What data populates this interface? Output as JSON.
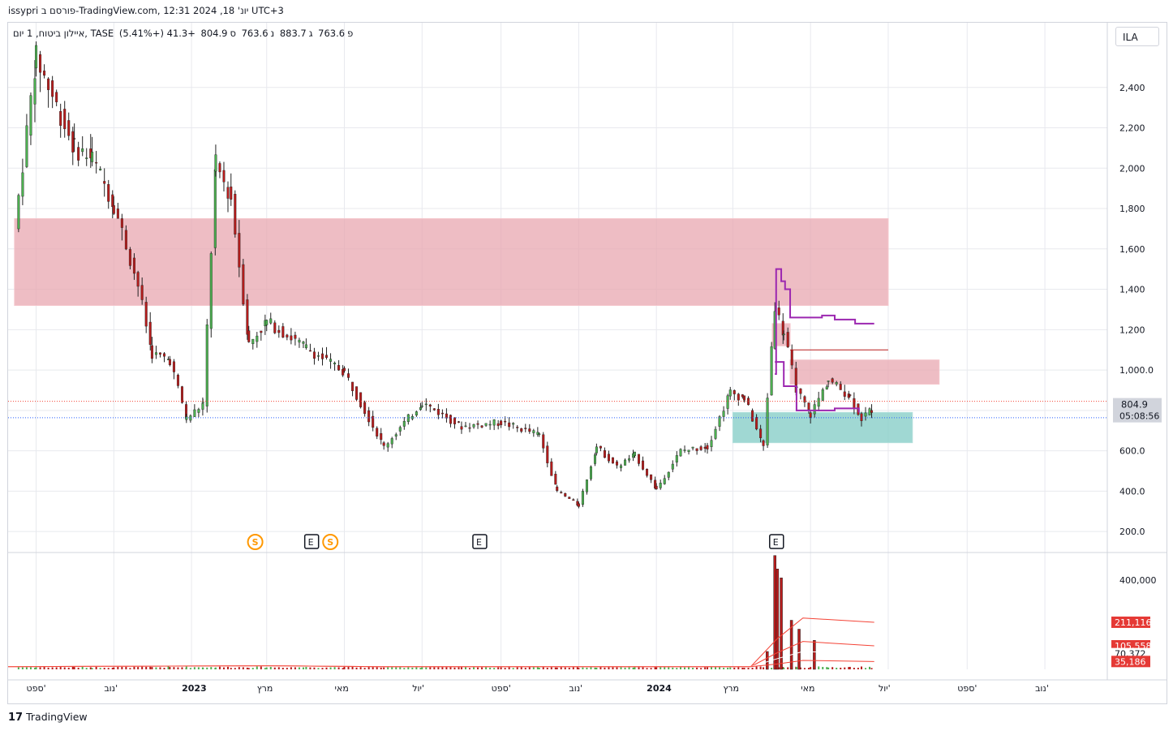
{
  "header": {
    "title": "issypri פורסם ב-TradingView.com, יונ' 18, 2024 12:31 UTC+3"
  },
  "symbol": {
    "name": "איילון ביטוח, 1 יום, TASE",
    "o_label": "פ",
    "o_value": "763.6",
    "h_label": "ג",
    "h_value": "883.7",
    "l_label": "נ",
    "l_value": "763.6",
    "c_label": "ס",
    "c_value": "804.9",
    "change": "+41.3 (+5.41%)"
  },
  "ticker_button": "ILA",
  "footer": {
    "brand": "TradingView"
  },
  "colors": {
    "up": "#4caf50",
    "down": "#b71c1c",
    "resistance_zone": "#e8a7b0",
    "support_zone": "#80cbc4",
    "indicator_line": "#9c27b0",
    "volume_ma": "#f44336",
    "price_line": "#2962ff",
    "last_price_dash": "#f44336"
  },
  "chart_data": {
    "type": "candlestick",
    "grid": true,
    "price_axis": {
      "ylim": [
        100,
        2600
      ],
      "ticks": [
        {
          "value": 200,
          "label": "200.0"
        },
        {
          "value": 400,
          "label": "400.0"
        },
        {
          "value": 600,
          "label": "600.0"
        },
        {
          "value": 800,
          "label": "800.0"
        },
        {
          "value": 1000,
          "label": "1,000.0"
        },
        {
          "value": 1200,
          "label": "1,200"
        },
        {
          "value": 1400,
          "label": "1,400"
        },
        {
          "value": 1600,
          "label": "1,600"
        },
        {
          "value": 1800,
          "label": "1,800"
        },
        {
          "value": 2000,
          "label": "2,000"
        },
        {
          "value": 2200,
          "label": "2,200"
        },
        {
          "value": 2400,
          "label": "2,400"
        }
      ],
      "last_price": {
        "value": 804.9,
        "label": "804.9",
        "countdown": "05:08:56"
      },
      "prev_close_line": 763.6
    },
    "volume_axis": {
      "ylim": [
        0,
        520000
      ],
      "ticks": [
        {
          "value": 400000,
          "label": "400,000"
        }
      ],
      "badges": [
        {
          "value": 211116,
          "label": "211,116",
          "color": "#e53935"
        },
        {
          "value": 105558,
          "label": "105,558",
          "color": "#e53935"
        },
        {
          "value": 70372,
          "label": "70,372",
          "color": "#ffffff"
        },
        {
          "value": 35186,
          "label": "35,186",
          "color": "#e53935"
        }
      ]
    },
    "time_axis": {
      "labels": [
        "ספט'",
        "נוב'",
        "2023",
        "מרץ",
        "מאי",
        "יול'",
        "ספט'",
        "נוב'",
        "2024",
        "מרץ",
        "מאי",
        "יול'",
        "ספט'",
        "נוב'"
      ],
      "bold": [
        false,
        false,
        true,
        false,
        false,
        false,
        false,
        false,
        true,
        false,
        false,
        false,
        false,
        false
      ],
      "dates": [
        "2022-09-01",
        "2022-11-01",
        "2023-01-01",
        "2023-03-01",
        "2023-05-01",
        "2023-07-01",
        "2023-09-01",
        "2023-11-01",
        "2024-01-01",
        "2024-03-01",
        "2024-05-01",
        "2024-07-01",
        "2024-09-01",
        "2024-11-01"
      ]
    },
    "series": [
      {
        "date": "2022-08-15",
        "close": 1700
      },
      {
        "date": "2022-09-01",
        "close": 2550
      },
      {
        "date": "2022-10-01",
        "close": 2100
      },
      {
        "date": "2022-10-15",
        "close": 2050
      },
      {
        "date": "2022-11-01",
        "close": 1820
      },
      {
        "date": "2022-11-20",
        "close": 1420
      },
      {
        "date": "2022-12-01",
        "close": 1080
      },
      {
        "date": "2022-12-15",
        "close": 1050
      },
      {
        "date": "2022-12-28",
        "close": 760
      },
      {
        "date": "2023-01-10",
        "close": 830
      },
      {
        "date": "2023-01-20",
        "close": 2020
      },
      {
        "date": "2023-02-01",
        "close": 1850
      },
      {
        "date": "2023-02-15",
        "close": 1130
      },
      {
        "date": "2023-03-01",
        "close": 1240
      },
      {
        "date": "2023-04-01",
        "close": 1110
      },
      {
        "date": "2023-05-01",
        "close": 990
      },
      {
        "date": "2023-06-01",
        "close": 620
      },
      {
        "date": "2023-07-01",
        "close": 840
      },
      {
        "date": "2023-08-01",
        "close": 720
      },
      {
        "date": "2023-09-01",
        "close": 740
      },
      {
        "date": "2023-10-01",
        "close": 680
      },
      {
        "date": "2023-10-15",
        "close": 400
      },
      {
        "date": "2023-11-01",
        "close": 330
      },
      {
        "date": "2023-11-15",
        "close": 620
      },
      {
        "date": "2023-12-01",
        "close": 520
      },
      {
        "date": "2023-12-15",
        "close": 580
      },
      {
        "date": "2024-01-01",
        "close": 410
      },
      {
        "date": "2024-01-20",
        "close": 600
      },
      {
        "date": "2024-02-10",
        "close": 620
      },
      {
        "date": "2024-02-28",
        "close": 890
      },
      {
        "date": "2024-03-10",
        "close": 860
      },
      {
        "date": "2024-03-25",
        "close": 620
      },
      {
        "date": "2024-04-03",
        "close": 1320
      },
      {
        "date": "2024-04-10",
        "close": 1180
      },
      {
        "date": "2024-04-20",
        "close": 900
      },
      {
        "date": "2024-05-01",
        "close": 780
      },
      {
        "date": "2024-05-15",
        "close": 950
      },
      {
        "date": "2024-06-01",
        "close": 870
      },
      {
        "date": "2024-06-10",
        "close": 760
      },
      {
        "date": "2024-06-18",
        "close": 804.9
      }
    ],
    "zones": [
      {
        "type": "resistance",
        "from": "2022-08-15",
        "to": "2024-07-01",
        "low": 1320,
        "high": 1750
      },
      {
        "type": "resistance",
        "from": "2024-04-15",
        "to": "2024-08-10",
        "low": 930,
        "high": 1050
      },
      {
        "type": "resistance",
        "from": "2024-04-01",
        "to": "2024-04-15",
        "low": 1120,
        "high": 1230
      },
      {
        "type": "support",
        "from": "2024-03-01",
        "to": "2024-07-20",
        "low": 640,
        "high": 790
      }
    ],
    "indicator": {
      "name": "",
      "points": [
        {
          "date": "2024-04-03",
          "value": 980
        },
        {
          "date": "2024-04-04",
          "value": 1500
        },
        {
          "date": "2024-04-07",
          "value": 1500
        },
        {
          "date": "2024-04-08",
          "value": 1440
        },
        {
          "date": "2024-04-11",
          "value": 1400
        },
        {
          "date": "2024-04-15",
          "value": 1260
        },
        {
          "date": "2024-05-10",
          "value": 1270
        },
        {
          "date": "2024-05-20",
          "value": 1250
        },
        {
          "date": "2024-06-05",
          "value": 1230
        },
        {
          "date": "2024-06-20",
          "value": 1230
        }
      ],
      "lower_points": [
        {
          "date": "2024-04-03",
          "value": 1040
        },
        {
          "date": "2024-04-10",
          "value": 920
        },
        {
          "date": "2024-04-20",
          "value": 800
        },
        {
          "date": "2024-05-20",
          "value": 810
        },
        {
          "date": "2024-06-08",
          "value": 790
        }
      ]
    },
    "events": [
      {
        "date": "2023-02-20",
        "type": "dividend",
        "label": "S"
      },
      {
        "date": "2023-04-05",
        "type": "earnings",
        "label": "E"
      },
      {
        "date": "2023-04-20",
        "type": "dividend",
        "label": "S"
      },
      {
        "date": "2023-08-15",
        "type": "earnings",
        "label": "E"
      },
      {
        "date": "2024-04-04",
        "type": "earnings",
        "label": "E"
      }
    ],
    "volume_spikes": [
      {
        "date": "2024-04-03",
        "value": 510000
      },
      {
        "date": "2024-04-05",
        "value": 450000
      },
      {
        "date": "2024-04-08",
        "value": 410000
      },
      {
        "date": "2024-04-16",
        "value": 220000
      },
      {
        "date": "2024-04-22",
        "value": 180000
      },
      {
        "date": "2024-05-04",
        "value": 130000
      },
      {
        "date": "2024-03-28",
        "value": 80000
      }
    ]
  }
}
